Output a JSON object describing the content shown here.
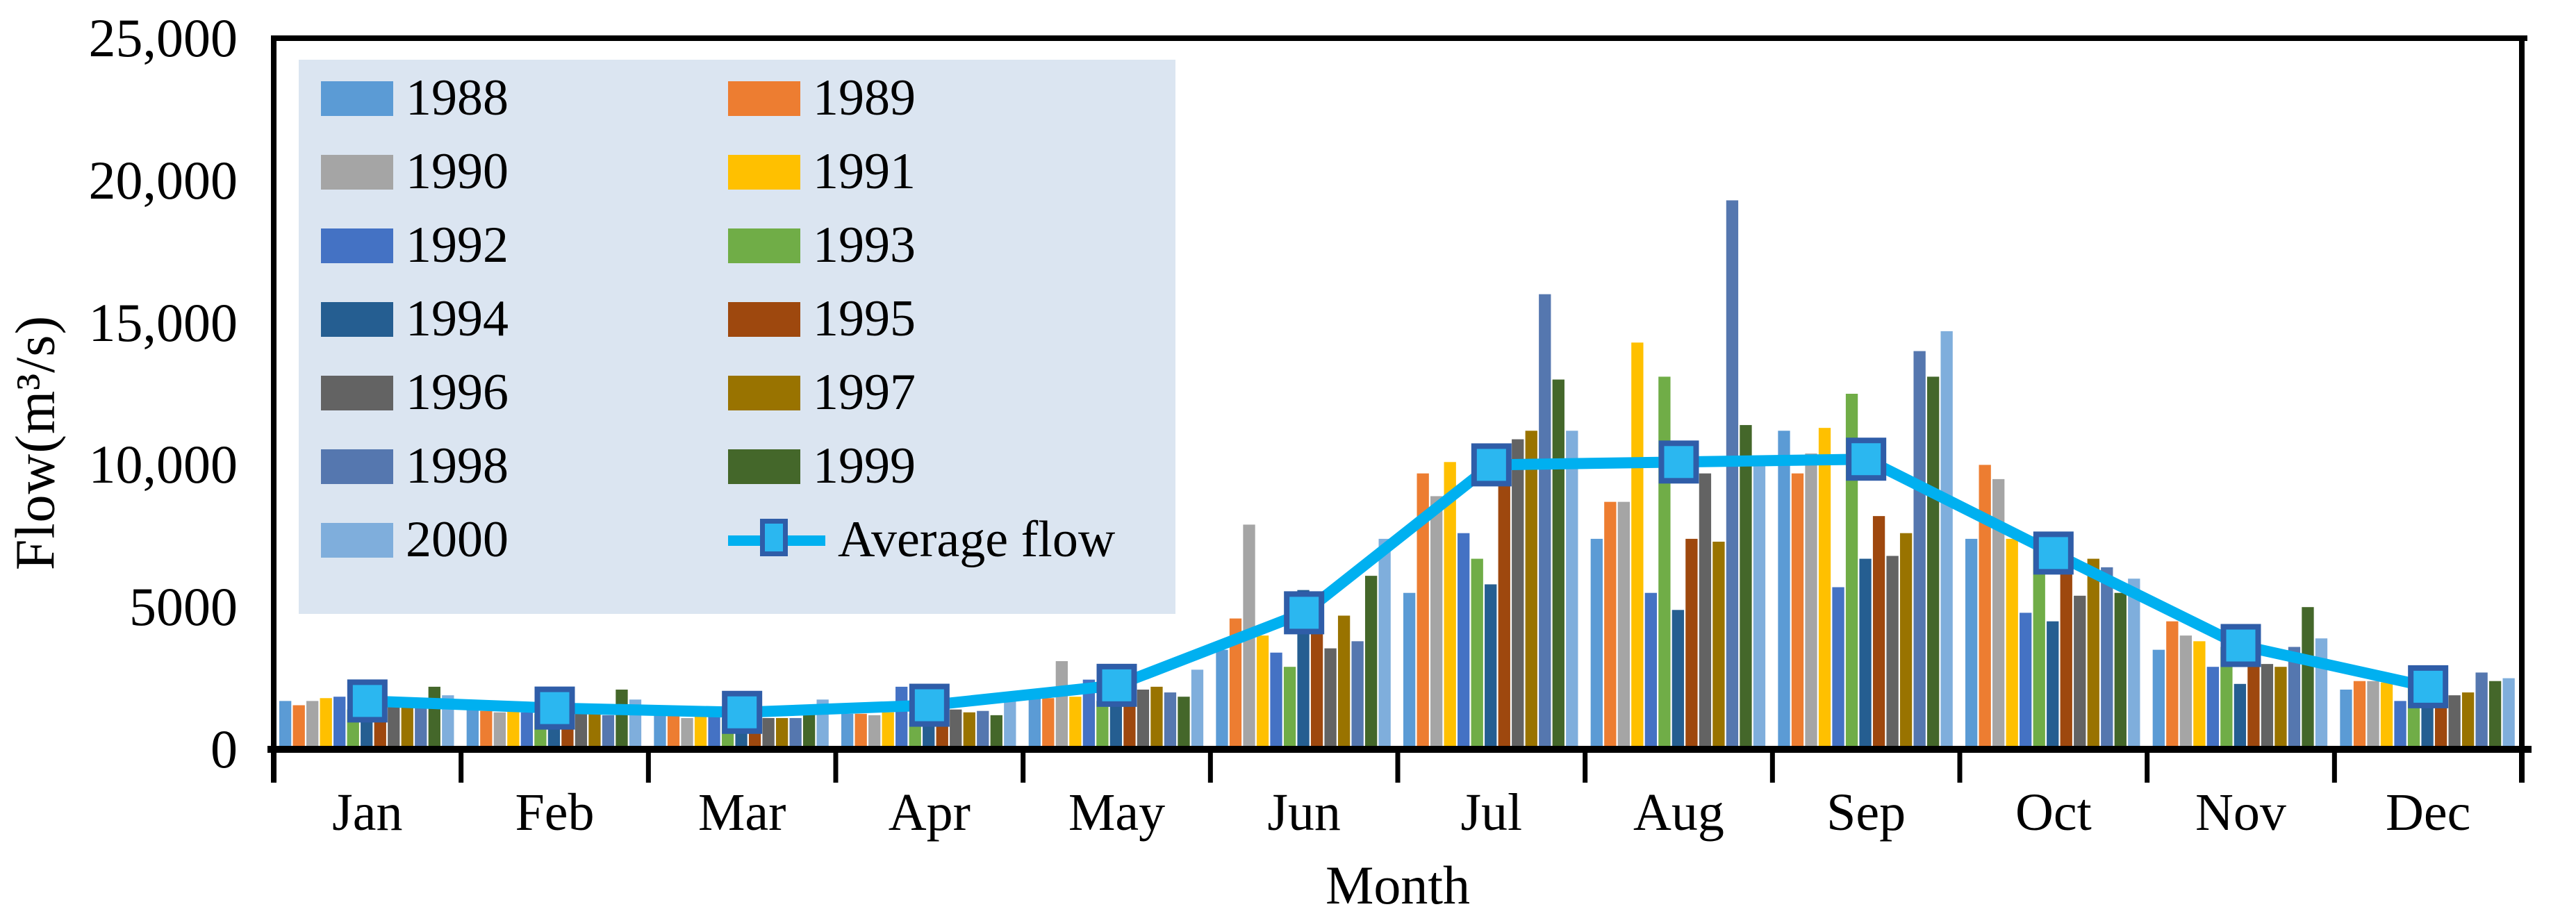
{
  "y_axis": {
    "label": "Flow(m³/s)",
    "ticks": [
      "25,000",
      "20,000",
      "15,000",
      "10,000",
      "5000",
      "0"
    ]
  },
  "x_axis": {
    "label": "Month"
  },
  "legend": {
    "average_label": "Average flow"
  },
  "chart_data": {
    "type": "bar",
    "title": "",
    "xlabel": "Month",
    "ylabel": "Flow(m³/s)",
    "ylim": [
      0,
      25000
    ],
    "y_tick_values": [
      25000,
      20000,
      15000,
      10000,
      5000,
      0
    ],
    "grid": false,
    "legend_position": "top-left",
    "categories": [
      "Jan",
      "Feb",
      "Mar",
      "Apr",
      "May",
      "Jun",
      "Jul",
      "Aug",
      "Sep",
      "Oct",
      "Nov",
      "Dec"
    ],
    "series": [
      {
        "name": "1988",
        "color": "#5B9BD5",
        "values": [
          1700,
          1400,
          1200,
          1250,
          1800,
          3500,
          5500,
          7400,
          11200,
          7400,
          3500,
          2100
        ]
      },
      {
        "name": "1989",
        "color": "#ED7D31",
        "values": [
          1550,
          1350,
          1200,
          1250,
          1800,
          4600,
          9700,
          8700,
          9700,
          10000,
          4500,
          2400
        ]
      },
      {
        "name": "1990",
        "color": "#A5A5A5",
        "values": [
          1700,
          1300,
          1100,
          1200,
          3100,
          7900,
          8900,
          8700,
          10400,
          9500,
          4000,
          2400
        ]
      },
      {
        "name": "1991",
        "color": "#FFC000",
        "values": [
          1800,
          1350,
          1200,
          1300,
          1850,
          4000,
          10100,
          14300,
          11300,
          7400,
          3800,
          2350
        ]
      },
      {
        "name": "1992",
        "color": "#4472C4",
        "values": [
          1850,
          1300,
          1150,
          2200,
          2450,
          3400,
          7600,
          5500,
          5700,
          4800,
          2900,
          1700
        ]
      },
      {
        "name": "1993",
        "color": "#70AD47",
        "values": [
          1400,
          1250,
          1100,
          1250,
          1700,
          2900,
          6700,
          13100,
          12500,
          7500,
          3600,
          2200
        ]
      },
      {
        "name": "1994",
        "color": "#255E91",
        "values": [
          1600,
          1400,
          1300,
          1500,
          2000,
          5600,
          5800,
          4900,
          6700,
          4500,
          2300,
          1600
        ]
      },
      {
        "name": "1995",
        "color": "#9E480E",
        "values": [
          1200,
          1100,
          950,
          1100,
          2250,
          4400,
          9300,
          7400,
          8200,
          6300,
          3300,
          2150
        ]
      },
      {
        "name": "1996",
        "color": "#636363",
        "values": [
          1500,
          1250,
          1100,
          1400,
          2100,
          3550,
          10900,
          9700,
          6800,
          5400,
          3000,
          1900
        ]
      },
      {
        "name": "1997",
        "color": "#997300",
        "values": [
          1500,
          1250,
          1100,
          1300,
          2200,
          4700,
          11200,
          7300,
          7600,
          6700,
          2900,
          2000
        ]
      },
      {
        "name": "1998",
        "color": "#5577AF",
        "values": [
          1550,
          1200,
          1100,
          1350,
          2000,
          3800,
          16000,
          19300,
          14000,
          6400,
          3600,
          2700
        ]
      },
      {
        "name": "1999",
        "color": "#44672A",
        "values": [
          2200,
          2100,
          1250,
          1200,
          1850,
          6100,
          13000,
          11400,
          13100,
          5500,
          5000,
          2400
        ]
      },
      {
        "name": "2000",
        "color": "#7FAEDC",
        "values": [
          1900,
          1750,
          1750,
          1700,
          2800,
          7400,
          11200,
          10200,
          14700,
          6000,
          3900,
          2500
        ]
      }
    ],
    "line_series": {
      "name": "Average flow",
      "color": "#00B0F0",
      "marker_fill": "#2BB7F0",
      "marker_border": "#2F5DA8",
      "values": [
        1700,
        1450,
        1300,
        1550,
        2250,
        4800,
        10000,
        10100,
        10200,
        6900,
        3650,
        2200
      ]
    }
  }
}
